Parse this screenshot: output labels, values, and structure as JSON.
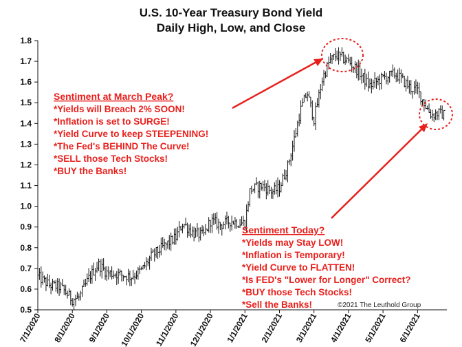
{
  "chart_data": {
    "type": "ohlc",
    "title": "U.S. 10-Year Treasury Bond Yield",
    "subtitle": "Daily High, Low, and Close",
    "xlabel": "",
    "ylabel": "",
    "ylim": [
      0.5,
      1.8
    ],
    "y_ticks": [
      "0.5",
      "0.6",
      "0.7",
      "0.8",
      "0.9",
      "1.0",
      "1.1",
      "1.2",
      "1.3",
      "1.4",
      "1.5",
      "1.6",
      "1.7",
      "1.8"
    ],
    "x_ticks": [
      "7/1/2020",
      "8/1/2020",
      "9/1/2020",
      "10/1/2020",
      "11/1/2020",
      "12/1/2020",
      "1/1/2021",
      "2/1/2021",
      "3/1/2021",
      "4/1/2021",
      "5/1/2021",
      "6/1/2021"
    ],
    "x_range_months": [
      0,
      11.85
    ],
    "grid": false,
    "line_color": "#111111",
    "annotation_color": "#e8201c",
    "series": [
      {
        "closes": [
          [
            0.0,
            0.66
          ],
          [
            0.33,
            0.62
          ],
          [
            0.66,
            0.61
          ],
          [
            1.0,
            0.55
          ],
          [
            1.2,
            0.56
          ],
          [
            1.5,
            0.66
          ],
          [
            1.75,
            0.72
          ],
          [
            2.0,
            0.68
          ],
          [
            2.4,
            0.67
          ],
          [
            2.7,
            0.66
          ],
          [
            3.0,
            0.69
          ],
          [
            3.3,
            0.76
          ],
          [
            3.6,
            0.8
          ],
          [
            4.0,
            0.85
          ],
          [
            4.2,
            0.92
          ],
          [
            4.5,
            0.87
          ],
          [
            4.8,
            0.86
          ],
          [
            5.0,
            0.93
          ],
          [
            5.3,
            0.91
          ],
          [
            5.6,
            0.93
          ],
          [
            5.8,
            0.92
          ],
          [
            6.0,
            0.92
          ],
          [
            6.15,
            1.08
          ],
          [
            6.5,
            1.1
          ],
          [
            6.8,
            1.07
          ],
          [
            7.0,
            1.09
          ],
          [
            7.25,
            1.2
          ],
          [
            7.45,
            1.34
          ],
          [
            7.6,
            1.46
          ],
          [
            7.8,
            1.55
          ],
          [
            8.0,
            1.42
          ],
          [
            8.25,
            1.62
          ],
          [
            8.45,
            1.7
          ],
          [
            8.65,
            1.73
          ],
          [
            9.0,
            1.7
          ],
          [
            9.3,
            1.65
          ],
          [
            9.6,
            1.58
          ],
          [
            10.0,
            1.62
          ],
          [
            10.35,
            1.64
          ],
          [
            10.5,
            1.62
          ],
          [
            10.8,
            1.57
          ],
          [
            11.0,
            1.56
          ],
          [
            11.25,
            1.48
          ],
          [
            11.4,
            1.44
          ],
          [
            11.6,
            1.45
          ],
          [
            11.8,
            1.44
          ]
        ]
      }
    ],
    "annotations": [
      {
        "heading": "Sentiment at March Peak?",
        "lines": [
          "*Yields will Breach 2% SOON!",
          "*Inflation is set to SURGE!",
          "*Yield Curve to keep STEEPENING!",
          "*The Fed's BEHIND The Curve!",
          "*SELL those Tech Stocks!",
          "*BUY the Banks!"
        ]
      },
      {
        "heading": "Sentiment Today?",
        "lines": [
          "*Yields may Stay LOW!",
          "*Inflation is Temporary!",
          "*Yield Curve to FLATTEN!",
          "*Is FED's \"Lower for Longer\" Correct?",
          "*BUY those Tech Stocks!",
          "*Sell the Banks!"
        ]
      }
    ],
    "source": "©2021 The Leuthold Group"
  }
}
